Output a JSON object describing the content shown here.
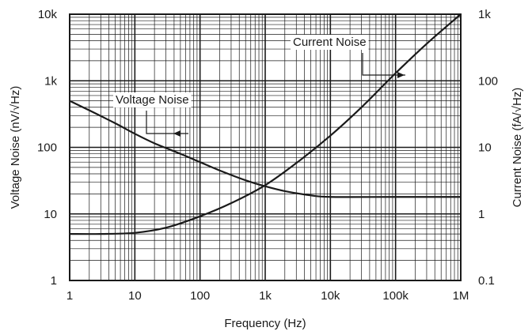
{
  "chart_data": {
    "type": "line",
    "title": "",
    "xlabel": "Frequency (Hz)",
    "ylabel_left": "Voltage Noise (nV/√Hz)",
    "ylabel_right": "Current Noise (fA/√Hz)",
    "x_scale": "log",
    "y_scale": "log",
    "xlim": [
      1,
      1000000
    ],
    "ylim_left": [
      1,
      10000
    ],
    "ylim_right": [
      0.1,
      1000
    ],
    "grid": true,
    "x_ticks": [
      {
        "value": 1,
        "label": "1"
      },
      {
        "value": 10,
        "label": "10"
      },
      {
        "value": 100,
        "label": "100"
      },
      {
        "value": 1000,
        "label": "1k"
      },
      {
        "value": 10000,
        "label": "10k"
      },
      {
        "value": 100000,
        "label": "100k"
      },
      {
        "value": 1000000,
        "label": "1M"
      }
    ],
    "y_ticks_left": [
      {
        "value": 1,
        "label": "1"
      },
      {
        "value": 10,
        "label": "10"
      },
      {
        "value": 100,
        "label": "100"
      },
      {
        "value": 1000,
        "label": "1k"
      },
      {
        "value": 10000,
        "label": "10k"
      }
    ],
    "y_ticks_right": [
      {
        "value": 0.1,
        "label": "0.1"
      },
      {
        "value": 1,
        "label": "1"
      },
      {
        "value": 10,
        "label": "10"
      },
      {
        "value": 100,
        "label": "100"
      },
      {
        "value": 1000,
        "label": "1k"
      }
    ],
    "series": [
      {
        "name": "Voltage Noise",
        "axis": "left",
        "color": "#1a1a1a",
        "x": [
          1,
          2,
          5,
          10,
          20,
          50,
          100,
          200,
          500,
          1000,
          2000,
          5000,
          10000,
          100000,
          1000000
        ],
        "y": [
          500,
          360,
          230,
          160,
          115,
          80,
          60,
          45,
          32,
          26,
          22,
          19,
          18,
          18,
          18
        ]
      },
      {
        "name": "Current Noise",
        "axis": "right",
        "color": "#1a1a1a",
        "x": [
          1,
          3,
          10,
          30,
          100,
          300,
          1000,
          3000,
          10000,
          30000,
          100000,
          300000,
          1000000
        ],
        "y": [
          0.5,
          0.5,
          0.52,
          0.62,
          0.92,
          1.45,
          2.7,
          5.8,
          15,
          40,
          130,
          360,
          1000
        ]
      }
    ],
    "annotations": [
      {
        "text": "Voltage Noise",
        "series": "Voltage Noise"
      },
      {
        "text": "Current Noise",
        "series": "Current Noise"
      }
    ]
  }
}
